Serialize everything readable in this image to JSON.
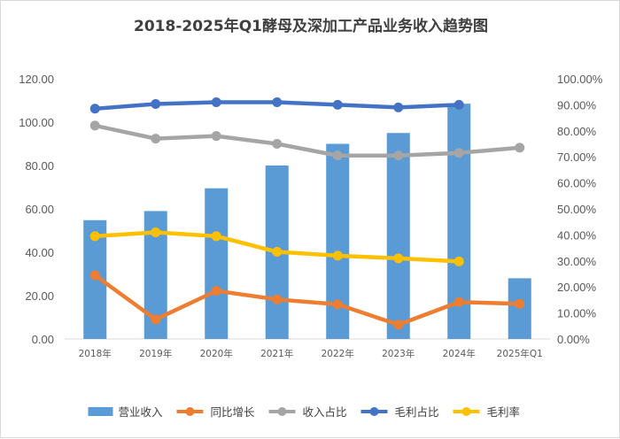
{
  "chart_data": {
    "type": "bar+line",
    "title": "2018-2025年Q1酵母及深加工产品业务收入趋势图",
    "categories": [
      "2018年",
      "2019年",
      "2020年",
      "2021年",
      "2022年",
      "2023年",
      "2024年",
      "2025年Q1"
    ],
    "y_left": {
      "ticks": [
        "0.00",
        "20.00",
        "40.00",
        "60.00",
        "80.00",
        "100.00",
        "120.00"
      ],
      "ylim": [
        0,
        120
      ]
    },
    "y_right": {
      "ticks": [
        "0.00%",
        "10.00%",
        "20.00%",
        "30.00%",
        "40.00%",
        "50.00%",
        "60.00%",
        "70.00%",
        "80.00%",
        "90.00%",
        "100.00%"
      ],
      "ylim": [
        0,
        100
      ]
    },
    "grid": false,
    "legend_position": "bottom",
    "series": [
      {
        "name": "营业收入",
        "type": "bar",
        "axis": "left",
        "color": "#5B9BD5",
        "values": [
          54.8,
          59,
          69.5,
          80,
          90,
          95,
          108.5,
          28
        ]
      },
      {
        "name": "同比增长",
        "type": "line",
        "axis": "right",
        "color": "#ED7D31",
        "values": [
          24.5,
          7.5,
          18.5,
          15.2,
          13.3,
          5.5,
          14.2,
          13.5
        ]
      },
      {
        "name": "收入占比",
        "type": "line",
        "axis": "right",
        "color": "#A5A5A5",
        "values": [
          82,
          77,
          78,
          75,
          70.5,
          70.5,
          71.5,
          73.5
        ]
      },
      {
        "name": "毛利占比",
        "type": "line",
        "axis": "right",
        "color": "#4472C4",
        "values": [
          88.5,
          90.3,
          91,
          91,
          90,
          89,
          90,
          null
        ]
      },
      {
        "name": "毛利率",
        "type": "line",
        "axis": "right",
        "color": "#FFC000",
        "values": [
          39.5,
          41,
          39.5,
          33.5,
          32,
          31,
          29.8,
          null
        ]
      }
    ]
  }
}
